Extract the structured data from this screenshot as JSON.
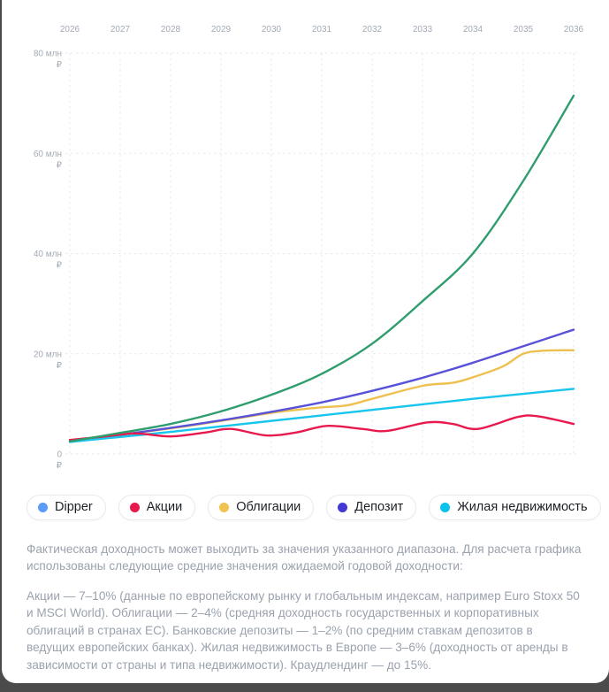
{
  "window": {
    "background_color": "#4b4b4b",
    "card_background_color": "#ffffff"
  },
  "chart_data": {
    "type": "line",
    "title": "",
    "x_axis": {
      "position": "top",
      "years": [
        2026,
        2027,
        2028,
        2029,
        2030,
        2031,
        2032,
        2033,
        2034,
        2035,
        2036
      ]
    },
    "y_axis": {
      "ticks_mln": [
        80,
        60,
        40,
        20,
        0
      ],
      "tick_suffix": " млн",
      "currency": "₽",
      "range_mln": [
        0,
        80
      ]
    },
    "grid": {
      "style": "dashed",
      "color": "#e7e9ed",
      "visible": true
    },
    "legend_position": "bottom",
    "series": [
      {
        "id": "dipper",
        "name": "Dipper",
        "line_color": "#2f9d6d",
        "legend_dot_color": "#5b9cf8",
        "points": [
          [
            2026,
            2.5
          ],
          [
            2027,
            4.2
          ],
          [
            2028,
            6.0
          ],
          [
            2029,
            8.5
          ],
          [
            2030,
            11.8
          ],
          [
            2031,
            16.0
          ],
          [
            2032,
            22.0
          ],
          [
            2033,
            30.5
          ],
          [
            2034,
            40.0
          ],
          [
            2035,
            54.5
          ],
          [
            2036,
            71.5
          ]
        ]
      },
      {
        "id": "akcii",
        "name": "Акции",
        "line_color": "#e8194d",
        "legend_dot_color": "#e8194d",
        "points": [
          [
            2026,
            2.8
          ],
          [
            2026.7,
            3.5
          ],
          [
            2027.3,
            4.1
          ],
          [
            2028,
            3.5
          ],
          [
            2028.7,
            4.3
          ],
          [
            2029.2,
            5.0
          ],
          [
            2029.9,
            3.7
          ],
          [
            2030.5,
            4.3
          ],
          [
            2031.1,
            5.6
          ],
          [
            2031.8,
            5.0
          ],
          [
            2032.3,
            4.6
          ],
          [
            2033.1,
            6.3
          ],
          [
            2033.6,
            6.0
          ],
          [
            2034.1,
            5.0
          ],
          [
            2034.9,
            7.4
          ],
          [
            2035.3,
            7.5
          ],
          [
            2036,
            6.0
          ]
        ]
      },
      {
        "id": "obligacii",
        "name": "Облигации",
        "line_color": "#eec04f",
        "legend_dot_color": "#f0c24f",
        "points": [
          [
            2026,
            2.5
          ],
          [
            2027,
            3.8
          ],
          [
            2028,
            5.1
          ],
          [
            2029,
            6.6
          ],
          [
            2030,
            8.2
          ],
          [
            2030.5,
            8.8
          ],
          [
            2031,
            9.3
          ],
          [
            2031.5,
            9.7
          ],
          [
            2032,
            11.0
          ],
          [
            2033,
            13.6
          ],
          [
            2033.6,
            14.2
          ],
          [
            2034,
            15.3
          ],
          [
            2034.6,
            17.5
          ],
          [
            2035,
            20.0
          ],
          [
            2035.4,
            20.6
          ],
          [
            2036,
            20.7
          ]
        ]
      },
      {
        "id": "depozit",
        "name": "Депозит",
        "line_color": "#5952d9",
        "legend_dot_color": "#4438d4",
        "points": [
          [
            2026,
            2.5
          ],
          [
            2027,
            3.8
          ],
          [
            2028,
            5.2
          ],
          [
            2029,
            6.7
          ],
          [
            2030,
            8.4
          ],
          [
            2031,
            10.3
          ],
          [
            2032,
            12.6
          ],
          [
            2033,
            15.2
          ],
          [
            2034,
            18.2
          ],
          [
            2035,
            21.5
          ],
          [
            2036,
            24.8
          ]
        ]
      },
      {
        "id": "zhilaya-nedvizhimost",
        "name": "Жилая недвижимость",
        "line_color": "#18c5ec",
        "legend_dot_color": "#0ac2ea",
        "points": [
          [
            2026,
            2.4
          ],
          [
            2027,
            3.4
          ],
          [
            2028,
            4.4
          ],
          [
            2029,
            5.5
          ],
          [
            2030,
            6.6
          ],
          [
            2031,
            7.7
          ],
          [
            2032,
            8.8
          ],
          [
            2033,
            9.9
          ],
          [
            2034,
            11.0
          ],
          [
            2035,
            12.0
          ],
          [
            2036,
            13.0
          ]
        ]
      }
    ]
  },
  "disclaimer": {
    "p1": "Фактическая доходность может выходить за значения указанного диапазона. Для расчета графика использованы следующие средние значения ожидаемой годовой доходности:",
    "p2": "Акции — 7–10% (данные по европейскому рынку и глобальным индексам, например Euro Stoxx 50 и MSCI World). Облигации — 2–4% (средняя доходность государственных и корпоративных облигаций в странах ЕС). Банковские депозиты — 1–2% (по средним ставкам депозитов в ведущих европейских банках). Жилая недвижимость в Европе — 3–6% (доходность от аренды в зависимости от страны и типа недвижимости). Краудлендинг — до 15%."
  }
}
